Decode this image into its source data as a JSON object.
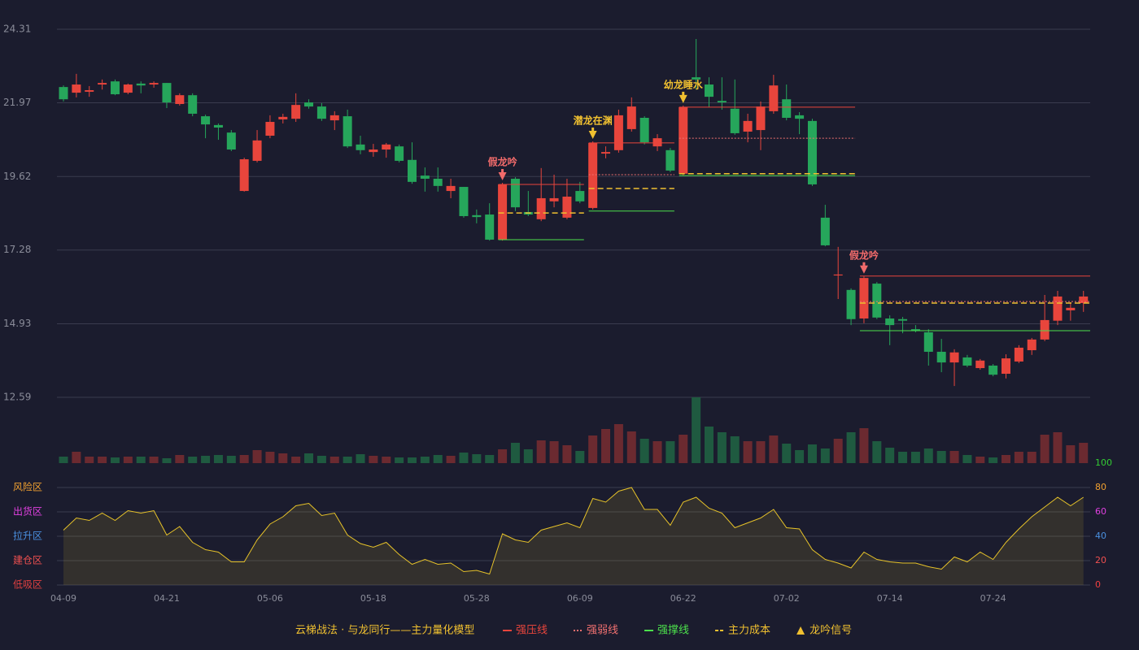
{
  "chart_data": [
    {
      "type": "candlestick",
      "categories": [
        "04-09",
        null,
        null,
        null,
        null,
        null,
        null,
        null,
        "04-21",
        null,
        null,
        null,
        null,
        null,
        null,
        null,
        "05-06",
        null,
        null,
        null,
        null,
        null,
        null,
        null,
        "05-18",
        null,
        null,
        null,
        null,
        null,
        null,
        null,
        "05-28",
        null,
        null,
        null,
        null,
        null,
        null,
        null,
        "06-09",
        null,
        null,
        null,
        null,
        null,
        null,
        null,
        "06-22",
        null,
        null,
        null,
        null,
        null,
        null,
        null,
        "07-02",
        null,
        null,
        null,
        null,
        null,
        null,
        null,
        "07-14",
        null,
        null,
        null,
        null,
        null,
        null,
        null,
        "07-24",
        null,
        null,
        null,
        null,
        null,
        null,
        null
      ],
      "ohlc": [
        [
          22.47,
          22.08,
          22.52,
          22.01
        ],
        [
          22.29,
          22.55,
          22.89,
          22.14
        ],
        [
          22.32,
          22.37,
          22.5,
          22.16
        ],
        [
          22.55,
          22.6,
          22.71,
          22.39
        ],
        [
          22.65,
          22.24,
          22.71,
          22.21
        ],
        [
          22.29,
          22.55,
          22.58,
          22.24
        ],
        [
          22.58,
          22.52,
          22.65,
          22.27
        ],
        [
          22.55,
          22.6,
          22.65,
          22.45
        ],
        [
          22.6,
          21.98,
          22.6,
          21.8
        ],
        [
          21.93,
          22.21,
          22.27,
          21.88
        ],
        [
          22.21,
          21.62,
          22.27,
          21.54
        ],
        [
          21.54,
          21.28,
          21.59,
          20.84
        ],
        [
          21.26,
          21.18,
          21.31,
          20.79
        ],
        [
          21.02,
          20.48,
          21.1,
          20.43
        ],
        [
          19.16,
          20.17,
          20.22,
          19.14
        ],
        [
          20.12,
          20.77,
          21.1,
          20.07
        ],
        [
          20.92,
          21.36,
          21.57,
          20.84
        ],
        [
          21.44,
          21.52,
          21.62,
          21.31
        ],
        [
          21.46,
          21.9,
          22.27,
          21.36
        ],
        [
          21.98,
          21.85,
          22.08,
          21.78
        ],
        [
          21.85,
          21.46,
          21.96,
          21.39
        ],
        [
          21.41,
          21.57,
          21.7,
          21.1
        ],
        [
          21.54,
          20.58,
          21.75,
          20.53
        ],
        [
          20.64,
          20.46,
          20.92,
          20.33
        ],
        [
          20.4,
          20.48,
          20.66,
          20.25
        ],
        [
          20.48,
          20.64,
          20.69,
          20.22
        ],
        [
          20.58,
          20.12,
          20.64,
          20.07
        ],
        [
          20.15,
          19.45,
          20.71,
          19.39
        ],
        [
          19.65,
          19.55,
          19.91,
          19.14
        ],
        [
          19.55,
          19.32,
          19.91,
          19.14
        ],
        [
          19.16,
          19.32,
          19.55,
          18.93
        ],
        [
          19.29,
          18.36,
          19.29,
          18.31
        ],
        [
          18.39,
          18.33,
          18.57,
          18.13
        ],
        [
          18.41,
          17.61,
          18.77,
          17.58
        ],
        [
          17.61,
          19.37,
          19.42,
          17.58
        ],
        [
          19.55,
          18.64,
          19.6,
          18.52
        ],
        [
          18.49,
          18.41,
          19.16,
          18.36
        ],
        [
          18.26,
          18.93,
          19.89,
          18.2
        ],
        [
          18.83,
          18.93,
          19.68,
          18.64
        ],
        [
          18.31,
          18.98,
          19.55,
          18.26
        ],
        [
          19.16,
          18.83,
          19.45,
          18.77
        ],
        [
          18.62,
          20.69,
          20.74,
          18.57
        ],
        [
          20.35,
          20.4,
          20.58,
          20.2
        ],
        [
          20.46,
          21.57,
          21.75,
          20.38
        ],
        [
          21.13,
          21.85,
          22.14,
          21.05
        ],
        [
          21.49,
          20.71,
          21.54,
          20.64
        ],
        [
          20.58,
          20.84,
          20.97,
          20.43
        ],
        [
          20.46,
          19.81,
          20.53,
          19.76
        ],
        [
          19.71,
          21.83,
          21.88,
          19.65
        ],
        [
          22.78,
          22.71,
          24.0,
          22.39
        ],
        [
          22.55,
          22.16,
          22.78,
          21.83
        ],
        [
          22.03,
          21.98,
          22.78,
          21.75
        ],
        [
          21.78,
          21.0,
          22.71,
          20.95
        ],
        [
          21.05,
          21.39,
          21.62,
          20.71
        ],
        [
          21.1,
          21.85,
          22.01,
          20.46
        ],
        [
          21.7,
          22.52,
          22.86,
          21.62
        ],
        [
          22.08,
          21.49,
          22.55,
          21.41
        ],
        [
          21.57,
          21.46,
          21.67,
          20.97
        ],
        [
          21.39,
          19.37,
          21.46,
          19.32
        ],
        [
          18.31,
          17.43,
          18.72,
          17.4
        ],
        [
          16.47,
          16.5,
          17.38,
          15.72
        ],
        [
          16.01,
          15.08,
          16.06,
          14.89
        ],
        [
          15.1,
          16.39,
          16.45,
          14.95
        ],
        [
          16.21,
          15.13,
          16.26,
          15.08
        ],
        [
          15.1,
          14.89,
          15.2,
          14.25
        ],
        [
          15.08,
          15.03,
          15.15,
          14.63
        ],
        [
          14.76,
          14.71,
          14.89,
          14.66
        ],
        [
          14.66,
          14.04,
          14.76,
          13.6
        ],
        [
          14.04,
          13.7,
          14.45,
          13.39
        ],
        [
          13.7,
          14.02,
          14.12,
          12.95
        ],
        [
          13.86,
          13.6,
          13.94,
          13.55
        ],
        [
          13.52,
          13.76,
          13.81,
          13.47
        ],
        [
          13.6,
          13.31,
          13.65,
          13.26
        ],
        [
          13.34,
          13.83,
          13.96,
          13.19
        ],
        [
          13.73,
          14.17,
          14.25,
          13.68
        ],
        [
          14.09,
          14.43,
          14.48,
          13.94
        ],
        [
          14.43,
          15.05,
          15.85,
          14.38
        ],
        [
          15.03,
          15.8,
          15.98,
          14.89
        ],
        [
          15.36,
          15.44,
          15.62,
          15.03
        ],
        [
          15.59,
          15.8,
          15.98,
          15.31
        ]
      ],
      "ylim": [
        12.59,
        24.31
      ],
      "yticks": [
        24.31,
        21.97,
        19.62,
        17.28,
        14.93,
        12.59
      ],
      "grid": true,
      "up_color": "#e8453c",
      "down_color": "#26a65b",
      "signals": [
        {
          "label": "假龙吟",
          "color": "#f26b6b",
          "start": 34,
          "end": 40,
          "press": 19.37,
          "weak": null,
          "support": 17.61,
          "cost": 18.46
        },
        {
          "label": "潜龙在渊",
          "color": "#f0c030",
          "start": 41,
          "end": 47,
          "press": 20.69,
          "weak": 19.68,
          "support": 18.52,
          "cost": 19.24
        },
        {
          "label": "幼龙睡水",
          "color": "#f0c030",
          "start": 48,
          "end": 61,
          "press": 21.83,
          "weak": 20.84,
          "support": 19.65,
          "cost": 19.71
        },
        {
          "label": "假龙吟",
          "color": "#f26b6b",
          "start": 62,
          "end": 79,
          "press": 16.45,
          "weak": 15.64,
          "support": 14.71,
          "cost": 15.59
        }
      ]
    },
    {
      "type": "volume",
      "values": [
        8,
        14,
        8,
        8,
        7,
        8,
        8,
        8,
        6,
        10,
        8,
        9,
        10,
        9,
        10,
        16,
        14,
        12,
        8,
        12,
        9,
        8,
        8,
        11,
        9,
        8,
        7,
        7,
        8,
        10,
        9,
        13,
        11,
        10,
        17,
        25,
        17,
        28,
        27,
        22,
        15,
        34,
        42,
        48,
        39,
        30,
        27,
        27,
        35,
        81,
        45,
        38,
        33,
        27,
        27,
        34,
        24,
        16,
        23,
        18,
        30,
        38,
        43,
        27,
        19,
        14,
        14,
        18,
        15,
        15,
        10,
        8,
        7,
        10,
        14,
        14,
        35,
        38,
        22,
        25
      ],
      "up_color": "#6b2a30",
      "down_color": "#1f5a40"
    },
    {
      "type": "line",
      "color": "#e6c229",
      "values": [
        45,
        55,
        53,
        59,
        53,
        61,
        59,
        61,
        41,
        48,
        35,
        29,
        27,
        19,
        19,
        37,
        50,
        56,
        65,
        67,
        57,
        59,
        41,
        34,
        31,
        35,
        25,
        17,
        21,
        17,
        18,
        11,
        12,
        9,
        42,
        37,
        35,
        45,
        48,
        51,
        47,
        71,
        68,
        77,
        80,
        62,
        62,
        49,
        68,
        72,
        63,
        59,
        47,
        51,
        55,
        62,
        47,
        46,
        29,
        21,
        18,
        14,
        27,
        21,
        19,
        18,
        18,
        15,
        13,
        23,
        19,
        27,
        21,
        35,
        46,
        56,
        64,
        72,
        65,
        72
      ],
      "ylim": [
        0,
        100
      ],
      "yticks": [
        0,
        20,
        40,
        60,
        80,
        100
      ],
      "ytick_colors": [
        "#f04040",
        "#f05050",
        "#4a90e0",
        "#e040e0",
        "#f0a030",
        "#33cc33"
      ],
      "zones": [
        {
          "value": 80,
          "label": "风险区",
          "color": "#f0a030"
        },
        {
          "value": 60,
          "label": "出货区",
          "color": "#e040e0"
        },
        {
          "value": 40,
          "label": "拉升区",
          "color": "#4a90e0"
        },
        {
          "value": 20,
          "label": "建仓区",
          "color": "#f05050"
        },
        {
          "value": 0,
          "label": "低吸区",
          "color": "#e04040"
        }
      ]
    }
  ],
  "title": "云梯战法 · 与龙同行——主力量化模型",
  "legend": [
    {
      "name": "强压线",
      "color": "#e8453c",
      "style": "solid"
    },
    {
      "name": "强弱线",
      "color": "#f07070",
      "style": "dotted"
    },
    {
      "name": "强撑线",
      "color": "#4ce04c",
      "style": "solid"
    },
    {
      "name": "主力成本",
      "color": "#f0c030",
      "style": "dashed"
    },
    {
      "name": "龙吟信号",
      "color": "#f0c030",
      "style": "triangle"
    }
  ]
}
